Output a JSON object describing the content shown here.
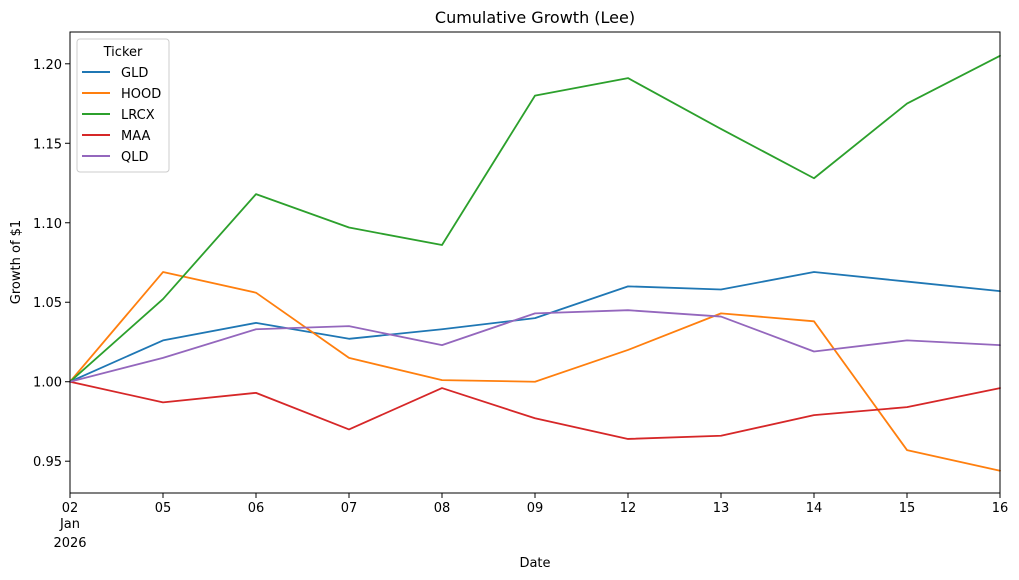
{
  "chart_data": {
    "type": "line",
    "title": "Cumulative Growth (Lee)",
    "xlabel": "Date",
    "ylabel": "Growth of $1",
    "x_month_label": "Jan",
    "x_year_label": "2026",
    "categories": [
      "02",
      "05",
      "06",
      "07",
      "08",
      "09",
      "12",
      "13",
      "14",
      "15",
      "16"
    ],
    "ylim": [
      0.93,
      1.22
    ],
    "yticks": [
      0.95,
      1.0,
      1.05,
      1.1,
      1.15,
      1.2
    ],
    "ytick_labels": [
      "0.95",
      "1.00",
      "1.05",
      "1.10",
      "1.15",
      "1.20"
    ],
    "legend_title": "Ticker",
    "legend_loc": "upper left",
    "series": [
      {
        "name": "GLD",
        "color": "#1f77b4",
        "values": [
          1.0,
          1.026,
          1.037,
          1.027,
          1.033,
          1.04,
          1.06,
          1.058,
          1.069,
          1.063,
          1.057
        ]
      },
      {
        "name": "HOOD",
        "color": "#ff7f0e",
        "values": [
          1.0,
          1.069,
          1.056,
          1.015,
          1.001,
          1.0,
          1.02,
          1.043,
          1.038,
          0.957,
          0.944
        ]
      },
      {
        "name": "LRCX",
        "color": "#2ca02c",
        "values": [
          1.0,
          1.052,
          1.118,
          1.097,
          1.086,
          1.18,
          1.191,
          1.159,
          1.128,
          1.175,
          1.205
        ]
      },
      {
        "name": "MAA",
        "color": "#d62728",
        "values": [
          1.0,
          0.987,
          0.993,
          0.97,
          0.996,
          0.977,
          0.964,
          0.966,
          0.979,
          0.984,
          0.996
        ]
      },
      {
        "name": "QLD",
        "color": "#9467bd",
        "values": [
          1.0,
          1.015,
          1.033,
          1.035,
          1.023,
          1.043,
          1.045,
          1.041,
          1.019,
          1.026,
          1.023
        ]
      }
    ]
  }
}
